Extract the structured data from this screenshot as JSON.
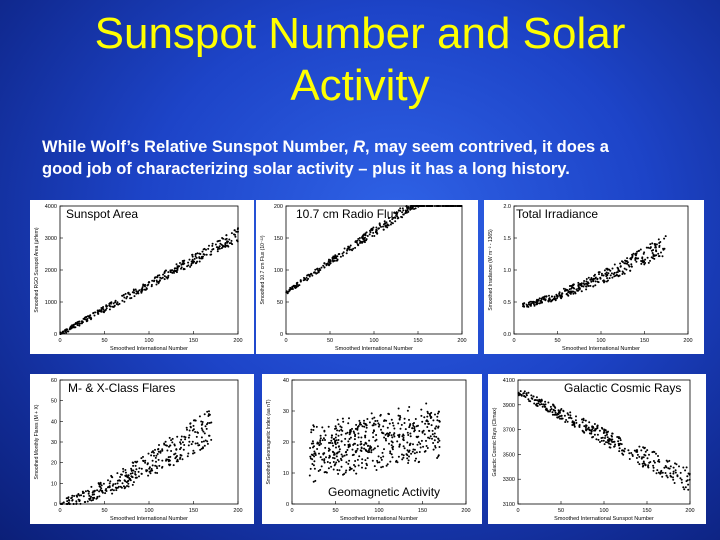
{
  "slide": {
    "title_line1": "Sunspot Number and Solar",
    "title_line2": "Activity",
    "subtitle_line1_a": "While Wolf’s Relative Sunspot Number, ",
    "subtitle_line1_r": "R",
    "subtitle_line1_b": ", may seem contrived, it does a",
    "subtitle_line2": "good job of characterizing solar activity – plus it has a long history."
  },
  "colors": {
    "title": "#ffff00",
    "background": "#1d44c8",
    "text": "#ffffff"
  },
  "chart_data": [
    {
      "type": "scatter",
      "label": "Sunspot Area",
      "xlabel": "Smoothed International Number",
      "ylabel": "Smoothed RGO Sunspot Area (μHem)",
      "xlim": [
        0,
        200
      ],
      "ylim": [
        0,
        4000
      ],
      "xticks": [
        "0",
        "50",
        "100",
        "150",
        "200"
      ],
      "yticks": [
        "0",
        "1000",
        "2000",
        "3000",
        "4000"
      ],
      "series": [
        {
          "shape": "linear",
          "from": [
            0,
            0
          ],
          "to": [
            200,
            3100
          ],
          "spread": 150
        }
      ]
    },
    {
      "type": "scatter",
      "label": "10.7 cm Radio Flux",
      "xlabel": "Smoothed International Number",
      "ylabel": "Smoothed 10.7 cm Flux (10⁻²²)",
      "xlim": [
        0,
        200
      ],
      "ylim": [
        0,
        200
      ],
      "xticks": [
        "0",
        "50",
        "100",
        "150",
        "200"
      ],
      "yticks": [
        "0",
        "50",
        "100",
        "150",
        "200"
      ],
      "series": [
        {
          "shape": "linear",
          "from": [
            0,
            65
          ],
          "to": [
            200,
            255
          ],
          "spread": 8
        }
      ]
    },
    {
      "type": "scatter",
      "label": "Total Irradiance",
      "xlabel": "Smoothed International Number",
      "ylabel": "Smoothed Irradiance (W m⁻² - 1365)",
      "xlim": [
        0,
        200
      ],
      "ylim": [
        0,
        2.0
      ],
      "xticks": [
        "0",
        "50",
        "100",
        "150",
        "200"
      ],
      "yticks": [
        "0.0",
        "0.5",
        "1.0",
        "1.5",
        "2.0"
      ],
      "series": [
        {
          "shape": "rising",
          "from": [
            10,
            0.45
          ],
          "to": [
            175,
            1.4
          ],
          "spread": 0.12
        }
      ]
    },
    {
      "type": "scatter",
      "label": "M- & X-Class Flares",
      "xlabel": "Smoothed International Number",
      "ylabel": "Smoothed Monthly Flares (M + X)",
      "xlim": [
        0,
        200
      ],
      "ylim": [
        0,
        60
      ],
      "xticks": [
        "0",
        "50",
        "100",
        "150",
        "200"
      ],
      "yticks": [
        "0",
        "10",
        "20",
        "30",
        "40",
        "50",
        "60"
      ],
      "series": [
        {
          "shape": "rising",
          "from": [
            0,
            0
          ],
          "to": [
            170,
            38
          ],
          "spread": 7
        }
      ]
    },
    {
      "type": "scatter",
      "label": "Geomagnetic Activity",
      "xlabel": "Smoothed International Number",
      "ylabel": "Smoothed Geomagnetic Index (aa nT)",
      "xlim": [
        0,
        200
      ],
      "ylim": [
        0,
        40
      ],
      "xticks": [
        "0",
        "50",
        "100",
        "150",
        "200"
      ],
      "yticks": [
        "0",
        "10",
        "20",
        "30",
        "40"
      ],
      "series": [
        {
          "shape": "cloud",
          "from": [
            0,
            16
          ],
          "to": [
            180,
            24
          ],
          "spread": 6
        }
      ]
    },
    {
      "type": "scatter",
      "label": "Galactic Cosmic Rays",
      "xlabel": "Smoothed International Sunspot Number",
      "ylabel": "Galactic Cosmic Rays (Climax)",
      "xlim": [
        0,
        200
      ],
      "ylim": [
        3100,
        4200
      ],
      "xticks": [
        "0",
        "50",
        "100",
        "150",
        "200"
      ],
      "yticks": [
        "3100",
        "3300",
        "3500",
        "3700",
        "3900",
        "4100"
      ],
      "series": [
        {
          "shape": "falling",
          "from": [
            0,
            4100
          ],
          "to": [
            200,
            3300
          ],
          "spread": 80
        }
      ]
    }
  ]
}
